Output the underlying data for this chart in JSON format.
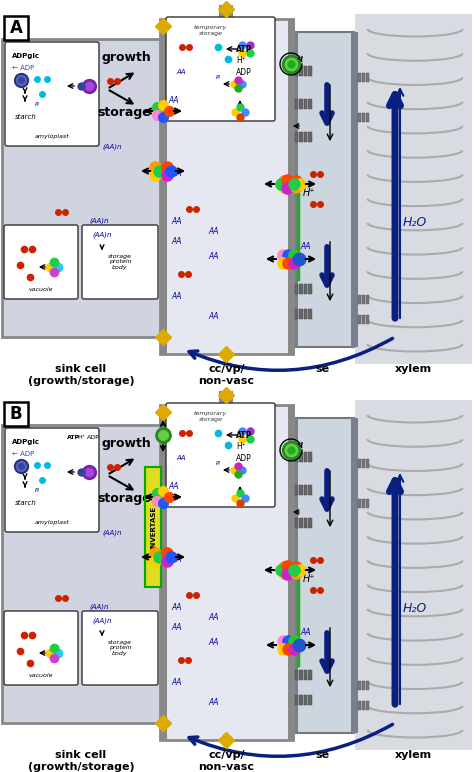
{
  "fig_width": 4.74,
  "fig_height": 7.72,
  "dpi": 100,
  "bg": "#ffffff",
  "gray_wall": "#888888",
  "gray_dark": "#666666",
  "cell_bg": "#d5d8e0",
  "ccvp_bg": "#e8eaf0",
  "se_bg": "#d0d5dd",
  "xylem_bg": "#d8dce2",
  "white": "#ffffff",
  "red": "#cc2200",
  "cyan": "#00bbdd",
  "blue_dark": "#000099",
  "blue_arrow": "#0a2080",
  "green_pump": "#229922",
  "yellow_conn": "#ddaa00",
  "panel_A": "A",
  "panel_B": "B",
  "sink_label": "sink cell\n(growth/storage)",
  "ccvp_label": "cc/vp/\nnon-vasc",
  "se_label": "se",
  "xylem_label": "xylem",
  "growth_label": "growth",
  "storage_label": "storage",
  "starch_label": "starch",
  "amyloplast_label": "amyloplast",
  "vacuole_label": "vacuole",
  "spbody_label": "storage\nprotein\nbody",
  "adpglc_label": "ADPglc",
  "adp_label": "ADP",
  "AAn_label": "(AA)n",
  "AA_label": "AA",
  "atp_label": "ATP",
  "hplus_label": "H⁺",
  "adp2_label": "ADP",
  "h2o_label": "H₂O",
  "hplus_se": "H⁺",
  "temp_label": "temporary\nstorage",
  "invertase_label": "INVERTASE",
  "pi_label": "Pi"
}
